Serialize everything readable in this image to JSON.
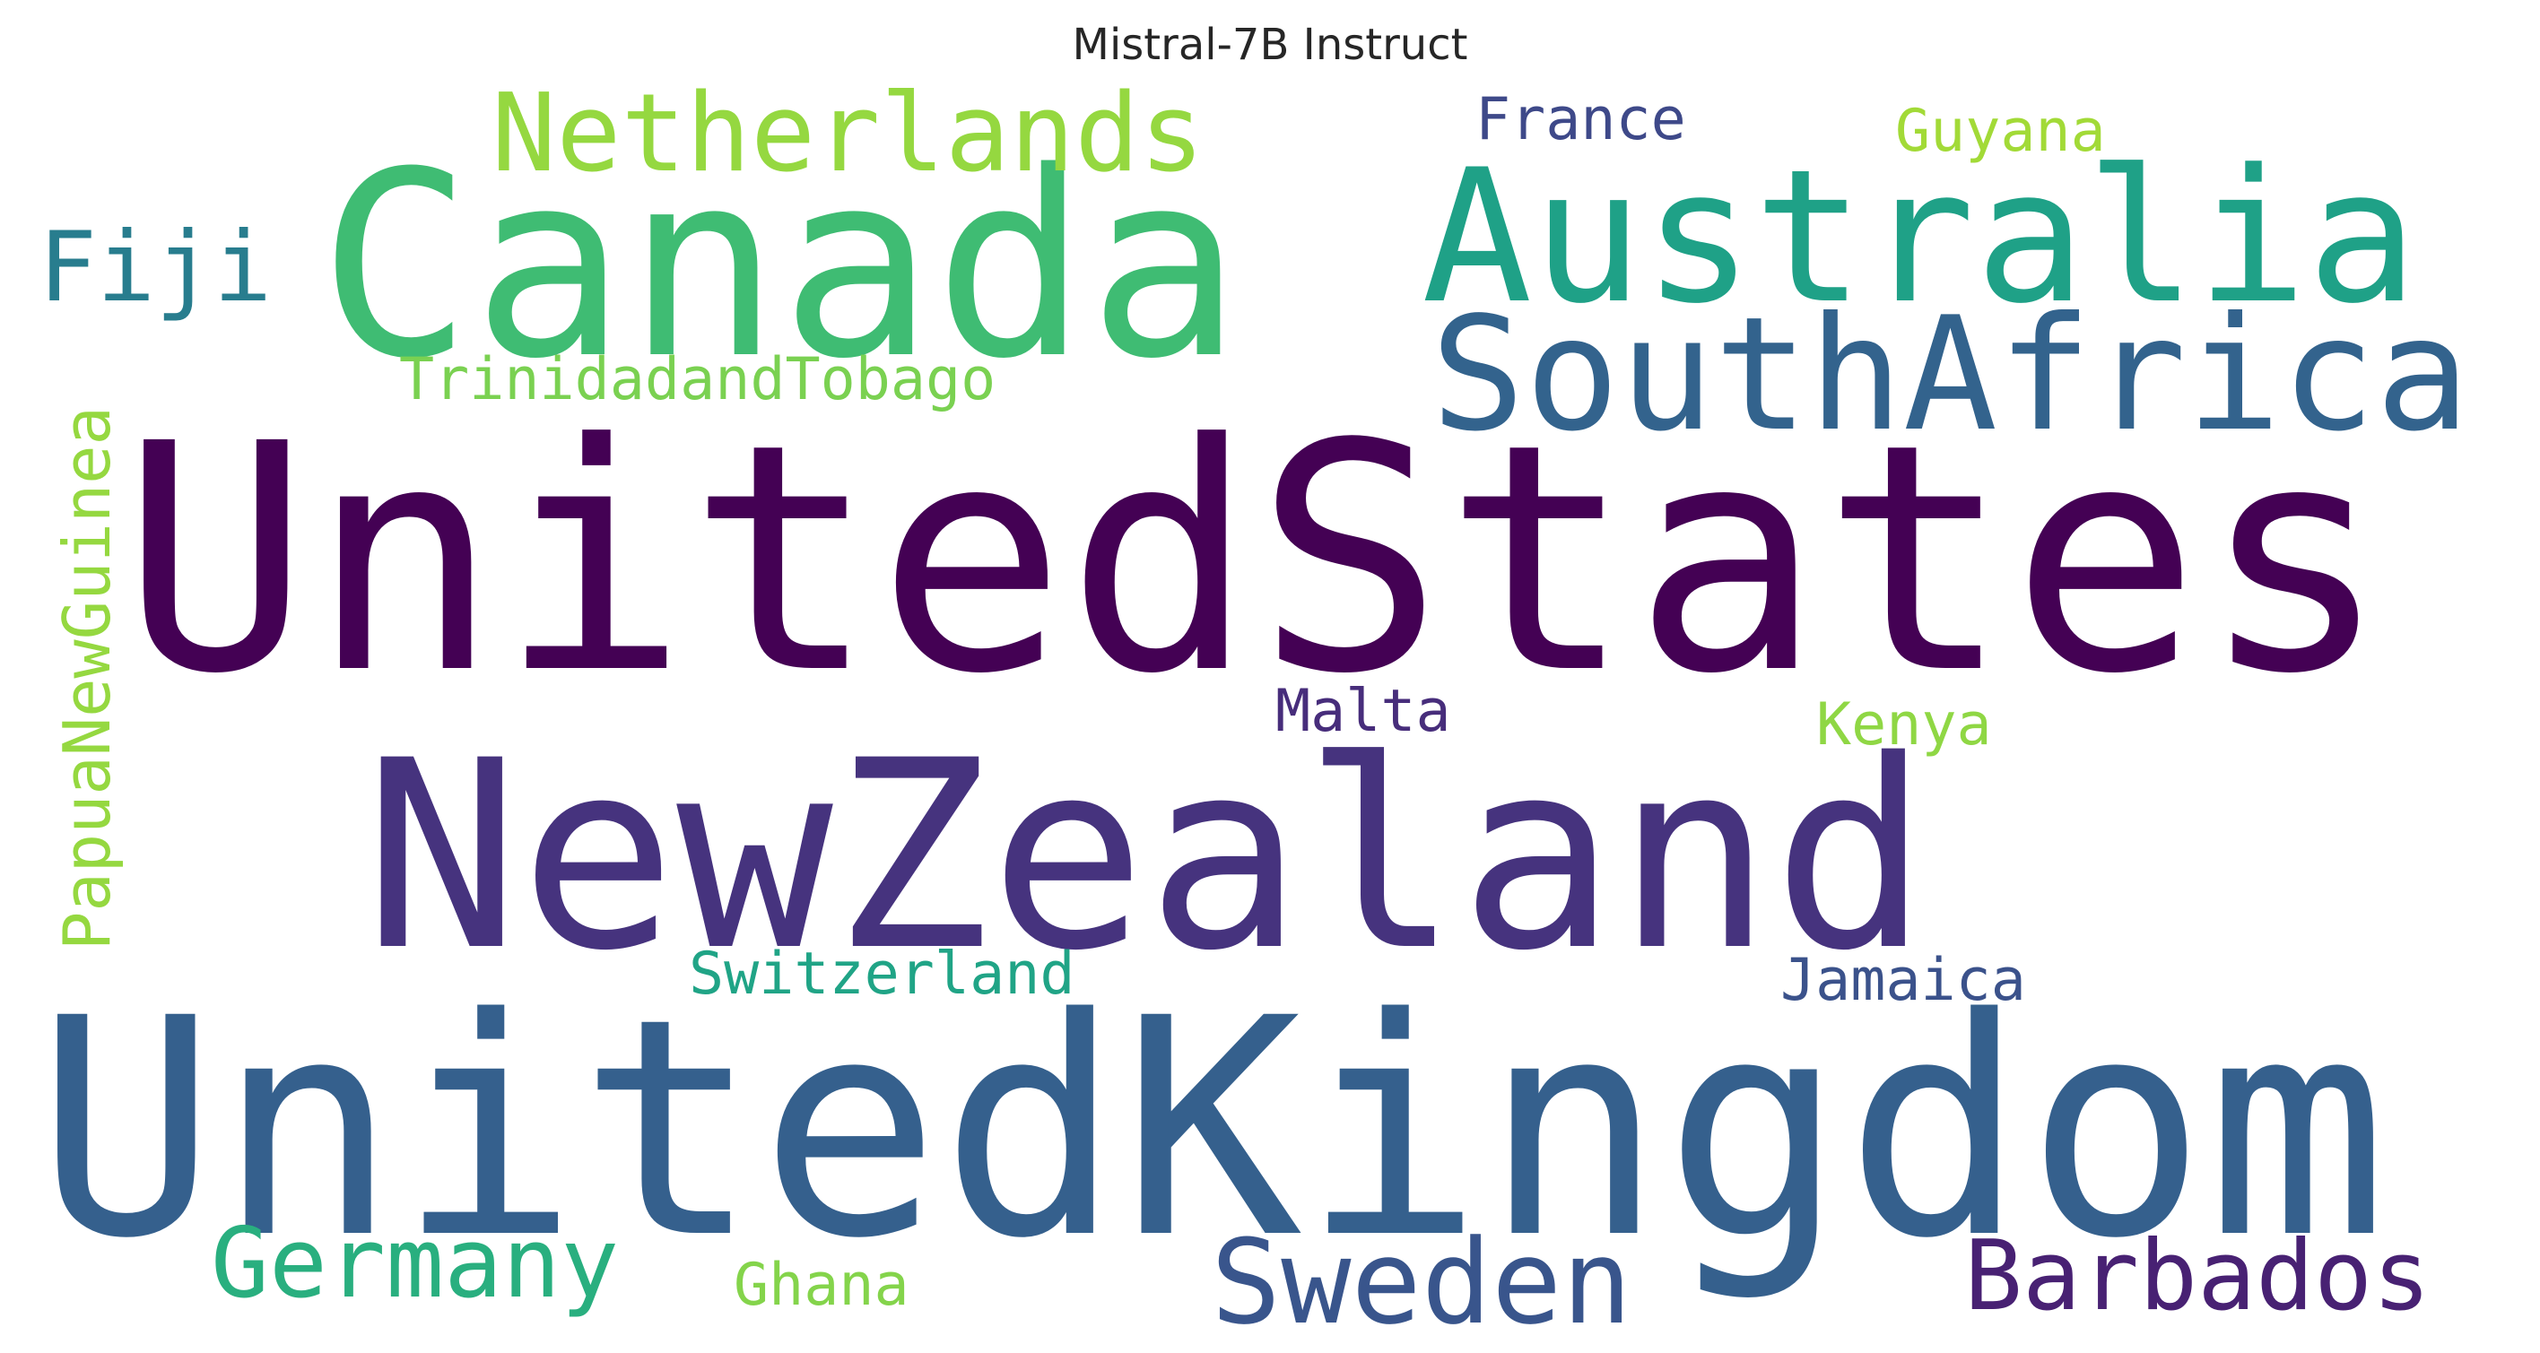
{
  "chart_data": {
    "type": "wordcloud",
    "title": "Mistral-7B Instruct",
    "words": [
      {
        "text": "UnitedStates",
        "rank": 1,
        "color": "#440154"
      },
      {
        "text": "UnitedKingdom",
        "rank": 2,
        "color": "#35608d"
      },
      {
        "text": "NewZealand",
        "rank": 3,
        "color": "#46337e"
      },
      {
        "text": "Canada",
        "rank": 4,
        "color": "#3fbc73"
      },
      {
        "text": "Australia",
        "rank": 5,
        "color": "#1fa187"
      },
      {
        "text": "SouthAfrica",
        "rank": 6,
        "color": "#33638d"
      },
      {
        "text": "Netherlands",
        "rank": 7,
        "color": "#95d840"
      },
      {
        "text": "Sweden",
        "rank": 8,
        "color": "#39558c"
      },
      {
        "text": "Germany",
        "rank": 9,
        "color": "#29af7f"
      },
      {
        "text": "Barbados",
        "rank": 10,
        "color": "#482173"
      },
      {
        "text": "Fiji",
        "rank": 11,
        "color": "#287d8e"
      },
      {
        "text": "PapuaNewGuinea",
        "rank": 12,
        "color": "#95d840"
      },
      {
        "text": "TrinidadandTobago",
        "rank": 13,
        "color": "#7ad151"
      },
      {
        "text": "Switzerland",
        "rank": 14,
        "color": "#20a486"
      },
      {
        "text": "Jamaica",
        "rank": 15,
        "color": "#3b528b"
      },
      {
        "text": "Malta",
        "rank": 16,
        "color": "#472d7b"
      },
      {
        "text": "Kenya",
        "rank": 17,
        "color": "#8fd744"
      },
      {
        "text": "France",
        "rank": 18,
        "color": "#3e4989"
      },
      {
        "text": "Guyana",
        "rank": 19,
        "color": "#a2da37"
      },
      {
        "text": "Ghana",
        "rank": 20,
        "color": "#84d44b"
      }
    ]
  }
}
